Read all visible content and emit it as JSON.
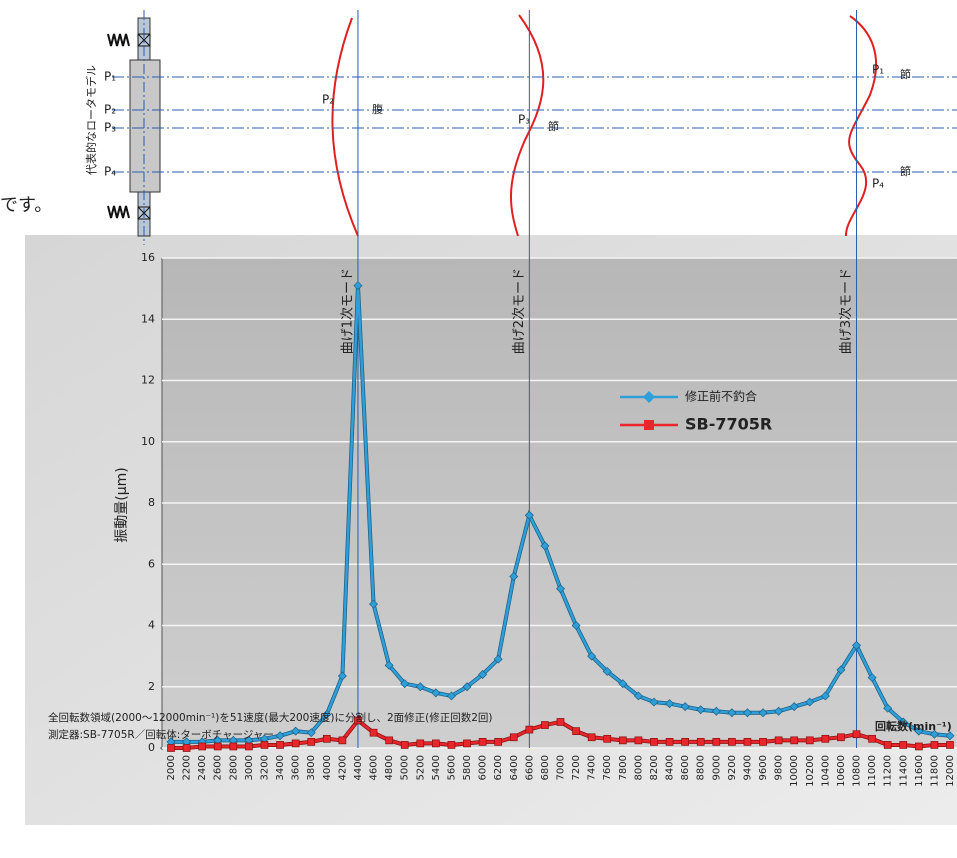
{
  "chart_data": {
    "type": "line",
    "x_label": "回転数(min⁻¹)",
    "y_label": "振動量(μm)",
    "notes": [
      "全回転数領域(2000～12000min⁻¹)を51速度(最大200速度)に分割し、2面修正(修正回数2回)",
      "測定器:SB-7705R／回転体:ターボチャージャー"
    ],
    "categories": [
      "2000",
      "2200",
      "2400",
      "2600",
      "2800",
      "3000",
      "3200",
      "3400",
      "3600",
      "3800",
      "4000",
      "4200",
      "4400",
      "4600",
      "4800",
      "5000",
      "5200",
      "5400",
      "5600",
      "5800",
      "6000",
      "6200",
      "6400",
      "6600",
      "6800",
      "7000",
      "7200",
      "7400",
      "7600",
      "7800",
      "8000",
      "8200",
      "8400",
      "8600",
      "8800",
      "9000",
      "9200",
      "9400",
      "9600",
      "9800",
      "10000",
      "10200",
      "10400",
      "10600",
      "10800",
      "11000",
      "11200",
      "11400",
      "11600",
      "11800",
      "12000"
    ],
    "series": [
      {
        "name": "修正前不釣合",
        "color": "#2e9fd8",
        "marker": "diamond",
        "values": [
          0.2,
          0.2,
          0.2,
          0.25,
          0.25,
          0.25,
          0.3,
          0.4,
          0.55,
          0.5,
          1.1,
          2.35,
          15.1,
          4.7,
          2.7,
          2.1,
          2.0,
          1.8,
          1.7,
          2.0,
          2.4,
          2.9,
          5.6,
          7.6,
          6.6,
          5.2,
          4.0,
          3.0,
          2.5,
          2.1,
          1.7,
          1.5,
          1.45,
          1.35,
          1.25,
          1.2,
          1.15,
          1.15,
          1.15,
          1.2,
          1.35,
          1.5,
          1.7,
          2.55,
          3.35,
          2.3,
          1.3,
          0.85,
          0.55,
          0.45,
          0.4
        ]
      },
      {
        "name": "SB-7705R",
        "color": "#e8262b",
        "marker": "square",
        "values": [
          0.0,
          0.0,
          0.05,
          0.05,
          0.05,
          0.05,
          0.1,
          0.1,
          0.15,
          0.2,
          0.3,
          0.25,
          0.9,
          0.5,
          0.25,
          0.1,
          0.15,
          0.15,
          0.1,
          0.15,
          0.2,
          0.2,
          0.35,
          0.6,
          0.75,
          0.85,
          0.55,
          0.35,
          0.3,
          0.25,
          0.25,
          0.2,
          0.2,
          0.2,
          0.2,
          0.2,
          0.2,
          0.2,
          0.2,
          0.25,
          0.25,
          0.25,
          0.3,
          0.35,
          0.45,
          0.3,
          0.1,
          0.1,
          0.05,
          0.1,
          0.1
        ]
      }
    ],
    "ylim": [
      0,
      16
    ],
    "yticks": [
      0,
      2,
      4,
      6,
      8,
      10,
      12,
      14,
      16
    ],
    "grid": true,
    "annotations": [
      {
        "text": "曲げ1次モード",
        "at": "4400"
      },
      {
        "text": "曲げ2次モード",
        "at": "6600"
      },
      {
        "text": "曲げ3次モード",
        "at": "10800"
      }
    ]
  },
  "diagram": {
    "title": "代表的なロータモデル",
    "positions": [
      "P₁",
      "P₂",
      "P₃",
      "P₄"
    ],
    "mode_labels": [
      {
        "point": "P₂",
        "kind": "腹"
      },
      {
        "point": "P₃",
        "kind": "節"
      },
      {
        "point": "P₁",
        "kind": "節"
      },
      {
        "point": "P₄",
        "kind": "節"
      }
    ]
  },
  "side_text": "です。"
}
